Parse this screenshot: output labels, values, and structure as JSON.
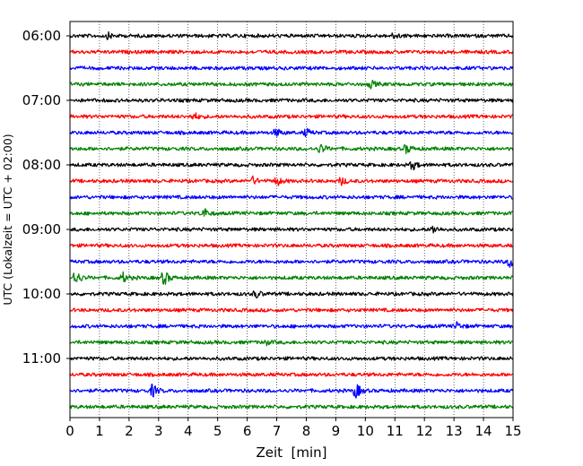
{
  "chart_data": {
    "type": "line",
    "title": "",
    "xlabel": "Zeit  [min]",
    "ylabel": "UTC (Lokalzeit = UTC + 02:00)",
    "xlim": [
      0,
      15
    ],
    "x_ticks": [
      "0",
      "1",
      "2",
      "3",
      "4",
      "5",
      "6",
      "7",
      "8",
      "9",
      "10",
      "11",
      "12",
      "13",
      "14",
      "15"
    ],
    "y_ticks": [
      "06:00",
      "07:00",
      "08:00",
      "09:00",
      "10:00",
      "11:00"
    ],
    "grid": "vertical dotted lines at each minute",
    "trace_interval_min": 15,
    "trace_start_times": [
      "06:00",
      "06:15",
      "06:30",
      "06:45",
      "07:00",
      "07:15",
      "07:30",
      "07:45",
      "08:00",
      "08:15",
      "08:30",
      "08:45",
      "09:00",
      "09:15",
      "09:30",
      "09:45",
      "10:00",
      "10:15",
      "10:30",
      "10:45",
      "11:00",
      "11:15",
      "11:30",
      "11:45"
    ],
    "trace_colors": [
      "#000000",
      "#ff0000",
      "#0000ff",
      "#008000"
    ],
    "events": [
      {
        "trace": 0,
        "t": 1.3,
        "amp": 3
      },
      {
        "trace": 0,
        "t": 11.0,
        "amp": 3
      },
      {
        "trace": 3,
        "t": 10.2,
        "amp": 4
      },
      {
        "trace": 5,
        "t": 4.2,
        "amp": 4
      },
      {
        "trace": 6,
        "t": 7.0,
        "amp": 4
      },
      {
        "trace": 6,
        "t": 8.0,
        "amp": 4
      },
      {
        "trace": 7,
        "t": 8.5,
        "amp": 5
      },
      {
        "trace": 7,
        "t": 11.4,
        "amp": 5
      },
      {
        "trace": 8,
        "t": 11.6,
        "amp": 5
      },
      {
        "trace": 9,
        "t": 6.2,
        "amp": 4
      },
      {
        "trace": 9,
        "t": 7.0,
        "amp": 5
      },
      {
        "trace": 9,
        "t": 9.2,
        "amp": 4
      },
      {
        "trace": 11,
        "t": 4.5,
        "amp": 7
      },
      {
        "trace": 12,
        "t": 12.3,
        "amp": 4
      },
      {
        "trace": 14,
        "t": 14.9,
        "amp": 6
      },
      {
        "trace": 15,
        "t": 0.2,
        "amp": 8
      },
      {
        "trace": 15,
        "t": 1.8,
        "amp": 5
      },
      {
        "trace": 15,
        "t": 3.2,
        "amp": 8
      },
      {
        "trace": 16,
        "t": 6.3,
        "amp": 4
      },
      {
        "trace": 18,
        "t": 13.1,
        "amp": 4
      },
      {
        "trace": 19,
        "t": 6.6,
        "amp": 3
      },
      {
        "trace": 22,
        "t": 2.8,
        "amp": 7
      },
      {
        "trace": 22,
        "t": 9.7,
        "amp": 8
      }
    ]
  }
}
